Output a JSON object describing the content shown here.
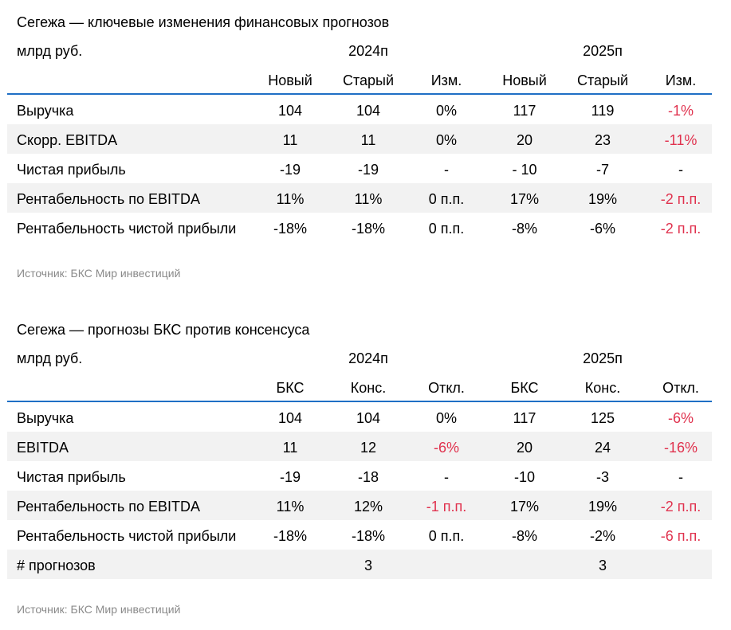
{
  "tables": [
    {
      "title": "Сегежа — ключевые изменения финансовых прогнозов",
      "unit": "млрд руб.",
      "years": [
        "2024п",
        "2025п"
      ],
      "columns": [
        "Новый",
        "Старый",
        "Изм.",
        "Новый",
        "Старый",
        "Изм."
      ],
      "rows": [
        {
          "label": "Выручка",
          "cells": [
            "104",
            "104",
            "0%",
            "117",
            "119",
            "-1%"
          ],
          "neg": [
            5
          ]
        },
        {
          "label": "Скорр. EBITDA",
          "cells": [
            "11",
            "11",
            "0%",
            "20",
            "23",
            "-11%"
          ],
          "neg": [
            5
          ]
        },
        {
          "label": "Чистая прибыль",
          "cells": [
            "-19",
            "-19",
            "-",
            "- 10",
            "-7",
            "-"
          ],
          "neg": []
        },
        {
          "label": "Рентабельность по EBITDA",
          "cells": [
            "11%",
            "11%",
            "0 п.п.",
            "17%",
            "19%",
            "-2 п.п."
          ],
          "neg": [
            5
          ]
        },
        {
          "label": "Рентабельность чистой прибыли",
          "cells": [
            "-18%",
            "-18%",
            "0 п.п.",
            "-8%",
            "-6%",
            "-2 п.п."
          ],
          "neg": [
            5
          ]
        }
      ],
      "source": "Источник: БКС Мир инвестиций"
    },
    {
      "title": "Сегежа — прогнозы БКС против консенсуса",
      "unit": "млрд руб.",
      "years": [
        "2024п",
        "2025п"
      ],
      "columns": [
        "БКС",
        "Конс.",
        "Откл.",
        "БКС",
        "Конс.",
        "Откл."
      ],
      "rows": [
        {
          "label": "Выручка",
          "cells": [
            "104",
            "104",
            "0%",
            "117",
            "125",
            "-6%"
          ],
          "neg": [
            5
          ]
        },
        {
          "label": "EBITDA",
          "cells": [
            "11",
            "12",
            "-6%",
            "20",
            "24",
            "-16%"
          ],
          "neg": [
            2,
            5
          ]
        },
        {
          "label": "Чистая прибыль",
          "cells": [
            "-19",
            "-18",
            "-",
            "-10",
            "-3",
            "-"
          ],
          "neg": []
        },
        {
          "label": "Рентабельность по EBITDA",
          "cells": [
            "11%",
            "12%",
            "-1 п.п.",
            "17%",
            "19%",
            "-2 п.п."
          ],
          "neg": [
            2,
            5
          ]
        },
        {
          "label": "Рентабельность чистой прибыли",
          "cells": [
            "-18%",
            "-18%",
            "0 п.п.",
            "-8%",
            "-2%",
            "-6 п.п."
          ],
          "neg": [
            5
          ]
        },
        {
          "label": "# прогнозов",
          "cells": [
            "",
            "3",
            "",
            "",
            "3",
            ""
          ],
          "neg": []
        }
      ],
      "source": "Источник: БКС Мир инвестиций"
    }
  ],
  "colors": {
    "accent_rule": "#1f6fc5",
    "negative": "#e0324e",
    "row_shade": "#f2f2f2",
    "source_text": "#8a8a8a"
  }
}
